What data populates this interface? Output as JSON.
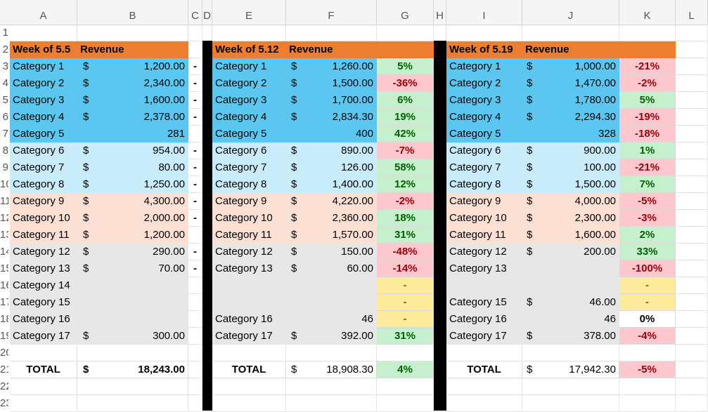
{
  "columns": [
    "A",
    "B",
    "C",
    "D",
    "E",
    "F",
    "G",
    "H",
    "I",
    "J",
    "K",
    "L"
  ],
  "row_numbers": [
    "1",
    "2",
    "3",
    "4",
    "5",
    "6",
    "7",
    "8",
    "9",
    "10",
    "11",
    "12",
    "13",
    "14",
    "15",
    "16",
    "17",
    "18",
    "19",
    "20",
    "21",
    "22",
    "23"
  ],
  "currency": "$",
  "dash": "-",
  "colors": {
    "header": "#ed7d31",
    "top_group": "#5bc6f0",
    "light_blue": "#c9ecfb",
    "peach": "#fce0d4",
    "gray": "#e7e7e7",
    "positive_fill": "#c6efce",
    "negative_fill": "#ffc7ce",
    "neutral_fill": "#ffeb9c"
  },
  "week1": {
    "title": "Week of 5.5",
    "revenue_label": "Revenue",
    "rows": [
      {
        "cat": "Category 1",
        "cur": "$",
        "val": "1,200.00",
        "dash": "-"
      },
      {
        "cat": "Category 2",
        "cur": "$",
        "val": "2,340.00",
        "dash": "-"
      },
      {
        "cat": "Category 3",
        "cur": "$",
        "val": "1,600.00",
        "dash": "-"
      },
      {
        "cat": "Category 4",
        "cur": "$",
        "val": "2,378.00",
        "dash": "-"
      },
      {
        "cat": "Category 5",
        "cur": "",
        "val": "281",
        "dash": ""
      },
      {
        "cat": "Category 6",
        "cur": "$",
        "val": "954.00",
        "dash": "-"
      },
      {
        "cat": "Category 7",
        "cur": "$",
        "val": "80.00",
        "dash": "-"
      },
      {
        "cat": "Category 8",
        "cur": "$",
        "val": "1,250.00",
        "dash": "-"
      },
      {
        "cat": "Category 9",
        "cur": "$",
        "val": "4,300.00",
        "dash": "-"
      },
      {
        "cat": "Category 10",
        "cur": "$",
        "val": "2,000.00",
        "dash": "-"
      },
      {
        "cat": "Category 11",
        "cur": "$",
        "val": "1,200.00",
        "dash": ""
      },
      {
        "cat": "Category 12",
        "cur": "$",
        "val": "290.00",
        "dash": "-"
      },
      {
        "cat": "Category 13",
        "cur": "$",
        "val": "70.00",
        "dash": "-"
      },
      {
        "cat": "Category 14",
        "cur": "",
        "val": "",
        "dash": ""
      },
      {
        "cat": "Category 15",
        "cur": "",
        "val": "",
        "dash": ""
      },
      {
        "cat": "Category 16",
        "cur": "",
        "val": "",
        "dash": ""
      },
      {
        "cat": "Category 17",
        "cur": "$",
        "val": "300.00",
        "dash": ""
      }
    ],
    "total_label": "TOTAL",
    "total_cur": "$",
    "total": "18,243.00"
  },
  "week2": {
    "title": "Week of 5.12",
    "revenue_label": "Revenue",
    "rows": [
      {
        "cat": "Category 1",
        "cur": "$",
        "val": "1,260.00",
        "pct": "5%",
        "tone": "pos"
      },
      {
        "cat": "Category 2",
        "cur": "$",
        "val": "1,500.00",
        "pct": "-36%",
        "tone": "neg"
      },
      {
        "cat": "Category 3",
        "cur": "$",
        "val": "1,700.00",
        "pct": "6%",
        "tone": "pos"
      },
      {
        "cat": "Category 4",
        "cur": "$",
        "val": "2,834.30",
        "pct": "19%",
        "tone": "pos"
      },
      {
        "cat": "Category 5",
        "cur": "",
        "val": "400",
        "pct": "42%",
        "tone": "pos"
      },
      {
        "cat": "Category 6",
        "cur": "$",
        "val": "890.00",
        "pct": "-7%",
        "tone": "neg"
      },
      {
        "cat": "Category 7",
        "cur": "$",
        "val": "126.00",
        "pct": "58%",
        "tone": "pos"
      },
      {
        "cat": "Category 8",
        "cur": "$",
        "val": "1,400.00",
        "pct": "12%",
        "tone": "pos"
      },
      {
        "cat": "Category 9",
        "cur": "$",
        "val": "4,220.00",
        "pct": "-2%",
        "tone": "neg"
      },
      {
        "cat": "Category 10",
        "cur": "$",
        "val": "2,360.00",
        "pct": "18%",
        "tone": "pos"
      },
      {
        "cat": "Category 11",
        "cur": "$",
        "val": "1,570.00",
        "pct": "31%",
        "tone": "pos"
      },
      {
        "cat": "Category 12",
        "cur": "$",
        "val": "150.00",
        "pct": "-48%",
        "tone": "neg"
      },
      {
        "cat": "Category 13",
        "cur": "$",
        "val": "60.00",
        "pct": "-14%",
        "tone": "neg"
      },
      {
        "cat": "",
        "cur": "",
        "val": "",
        "pct": "-",
        "tone": "neu"
      },
      {
        "cat": "",
        "cur": "",
        "val": "",
        "pct": "-",
        "tone": "neu"
      },
      {
        "cat": "Category 16",
        "cur": "",
        "val": "46",
        "pct": "-",
        "tone": "neu"
      },
      {
        "cat": "Category 17",
        "cur": "$",
        "val": "392.00",
        "pct": "31%",
        "tone": "pos"
      }
    ],
    "total_label": "TOTAL",
    "total_cur": "$",
    "total": "18,908.30",
    "total_pct": "4%",
    "total_tone": "pos"
  },
  "week3": {
    "title": "Week of 5.19",
    "revenue_label": "Revenue",
    "rows": [
      {
        "cat": "Category 1",
        "cur": "$",
        "val": "1,000.00",
        "pct": "-21%",
        "tone": "neg"
      },
      {
        "cat": "Category 2",
        "cur": "$",
        "val": "1,470.00",
        "pct": "-2%",
        "tone": "neg"
      },
      {
        "cat": "Category 3",
        "cur": "$",
        "val": "1,780.00",
        "pct": "5%",
        "tone": "pos"
      },
      {
        "cat": "Category 4",
        "cur": "$",
        "val": "2,294.30",
        "pct": "-19%",
        "tone": "neg"
      },
      {
        "cat": "Category 5",
        "cur": "",
        "val": "328",
        "pct": "-18%",
        "tone": "neg"
      },
      {
        "cat": "Category 6",
        "cur": "$",
        "val": "900.00",
        "pct": "1%",
        "tone": "pos"
      },
      {
        "cat": "Category 7",
        "cur": "$",
        "val": "100.00",
        "pct": "-21%",
        "tone": "neg"
      },
      {
        "cat": "Category 8",
        "cur": "$",
        "val": "1,500.00",
        "pct": "7%",
        "tone": "pos"
      },
      {
        "cat": "Category 9",
        "cur": "$",
        "val": "4,000.00",
        "pct": "-5%",
        "tone": "neg"
      },
      {
        "cat": "Category 10",
        "cur": "$",
        "val": "2,300.00",
        "pct": "-3%",
        "tone": "neg"
      },
      {
        "cat": "Category 11",
        "cur": "$",
        "val": "1,600.00",
        "pct": "2%",
        "tone": "pos"
      },
      {
        "cat": "Category 12",
        "cur": "$",
        "val": "200.00",
        "pct": "33%",
        "tone": "pos"
      },
      {
        "cat": "Category 13",
        "cur": "",
        "val": "",
        "pct": "-100%",
        "tone": "neg"
      },
      {
        "cat": "",
        "cur": "",
        "val": "",
        "pct": "-",
        "tone": "neu"
      },
      {
        "cat": "Category 15",
        "cur": "$",
        "val": "46.00",
        "pct": "-",
        "tone": "neu"
      },
      {
        "cat": "Category 16",
        "cur": "",
        "val": "46",
        "pct": "0%",
        "tone": "plain"
      },
      {
        "cat": "Category 17",
        "cur": "$",
        "val": "378.00",
        "pct": "-4%",
        "tone": "neg"
      }
    ],
    "total_label": "TOTAL",
    "total_cur": "$",
    "total": "17,942.30",
    "total_pct": "-5%",
    "total_tone": "neg"
  }
}
